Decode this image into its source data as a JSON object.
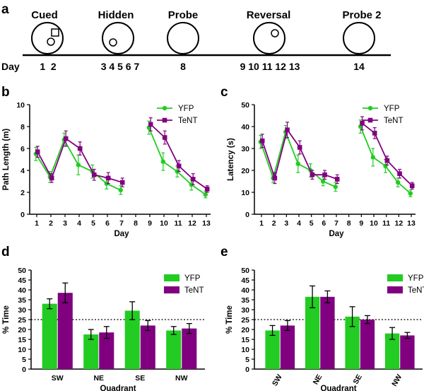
{
  "panels": {
    "a": "a",
    "b": "b",
    "c": "c",
    "d": "d",
    "e": "e"
  },
  "timeline": {
    "day_label": "Day",
    "phases": [
      {
        "label": "Cued",
        "days": "1  2",
        "pool_marks": [
          "small-circle",
          "square"
        ]
      },
      {
        "label": "Hidden",
        "days": "3 4 5 6 7",
        "pool_marks": [
          "small-circle"
        ]
      },
      {
        "label": "Probe",
        "days": "8",
        "pool_marks": []
      },
      {
        "label": "Reversal",
        "days": "9 10 11 12 13",
        "pool_marks": [
          "small-circle"
        ]
      },
      {
        "label": "Probe 2",
        "days": "14",
        "pool_marks": []
      }
    ]
  },
  "colors": {
    "yfp": "#22cc22",
    "tent": "#800080"
  },
  "chart_data": [
    {
      "id": "b",
      "type": "line",
      "xlabel": "Day",
      "ylabel": "Path Length (m)",
      "x": [
        1,
        2,
        3,
        4,
        5,
        6,
        7,
        8,
        9,
        10,
        11,
        12,
        13
      ],
      "ylim": [
        0,
        10
      ],
      "yticks": [
        0,
        2,
        4,
        6,
        8,
        10
      ],
      "series": [
        {
          "name": "YFP",
          "marker": "circle",
          "values": [
            5.5,
            3.4,
            6.8,
            4.5,
            3.9,
            2.8,
            2.2,
            null,
            7.9,
            4.8,
            3.9,
            2.7,
            1.8
          ],
          "errors": [
            0.6,
            0.5,
            0.6,
            0.9,
            0.6,
            0.5,
            0.4,
            null,
            0.6,
            0.8,
            0.5,
            0.5,
            0.3
          ]
        },
        {
          "name": "TeNT",
          "marker": "square",
          "values": [
            5.7,
            3.3,
            6.9,
            6.0,
            3.6,
            3.3,
            2.9,
            null,
            8.2,
            7.0,
            4.4,
            3.2,
            2.3
          ],
          "errors": [
            0.5,
            0.4,
            0.7,
            0.6,
            0.5,
            0.5,
            0.4,
            null,
            0.6,
            0.6,
            0.5,
            0.5,
            0.3
          ]
        }
      ]
    },
    {
      "id": "c",
      "type": "line",
      "xlabel": "Day",
      "ylabel": "Latency (s)",
      "x": [
        1,
        2,
        3,
        4,
        5,
        6,
        7,
        8,
        9,
        10,
        11,
        12,
        13
      ],
      "ylim": [
        0,
        50
      ],
      "yticks": [
        0,
        10,
        20,
        30,
        40,
        50
      ],
      "series": [
        {
          "name": "YFP",
          "marker": "circle",
          "values": [
            33,
            16.5,
            37.5,
            23,
            20,
            15,
            12.5,
            null,
            40,
            26,
            22,
            14.5,
            9.5
          ],
          "errors": [
            3,
            2,
            3,
            4,
            3,
            2,
            2,
            null,
            3,
            4,
            3,
            2,
            1.5
          ]
        },
        {
          "name": "TeNT",
          "marker": "square",
          "values": [
            33.5,
            16.5,
            38.5,
            30.5,
            18,
            18,
            16,
            null,
            41.5,
            37,
            24.5,
            18.5,
            13
          ],
          "errors": [
            3,
            2.5,
            3.5,
            3,
            2,
            2,
            2,
            null,
            3,
            2.5,
            2,
            2,
            1.5
          ]
        }
      ]
    },
    {
      "id": "d",
      "type": "bar",
      "xlabel": "Quadrant",
      "ylabel": "% Time",
      "categories": [
        "SW",
        "NE",
        "SE",
        "NW"
      ],
      "ylim": [
        0,
        50
      ],
      "yticks": [
        0,
        5,
        10,
        15,
        20,
        25,
        30,
        35,
        40,
        45,
        50
      ],
      "reference_line": 25,
      "rotated_tick_labels": false,
      "series": [
        {
          "name": "YFP",
          "values": [
            33,
            17.5,
            29.5,
            19.5
          ],
          "errors": [
            2.5,
            2.5,
            4.5,
            2
          ]
        },
        {
          "name": "TeNT",
          "values": [
            38.5,
            18.5,
            22,
            20.5
          ],
          "errors": [
            5,
            3,
            2.5,
            2.5
          ]
        }
      ]
    },
    {
      "id": "e",
      "type": "bar",
      "xlabel": "Quadrant",
      "ylabel": "% Time",
      "categories": [
        "SW",
        "NE",
        "SE",
        "NW"
      ],
      "ylim": [
        0,
        50
      ],
      "yticks": [
        0,
        5,
        10,
        15,
        20,
        25,
        30,
        35,
        40,
        45,
        50
      ],
      "reference_line": 25,
      "rotated_tick_labels": true,
      "series": [
        {
          "name": "YFP",
          "values": [
            19.5,
            36.5,
            26.5,
            18
          ],
          "errors": [
            2.5,
            5.5,
            5,
            3
          ]
        },
        {
          "name": "TeNT",
          "values": [
            22,
            36.5,
            25,
            17
          ],
          "errors": [
            2.5,
            3,
            2,
            1.5
          ]
        }
      ]
    }
  ]
}
